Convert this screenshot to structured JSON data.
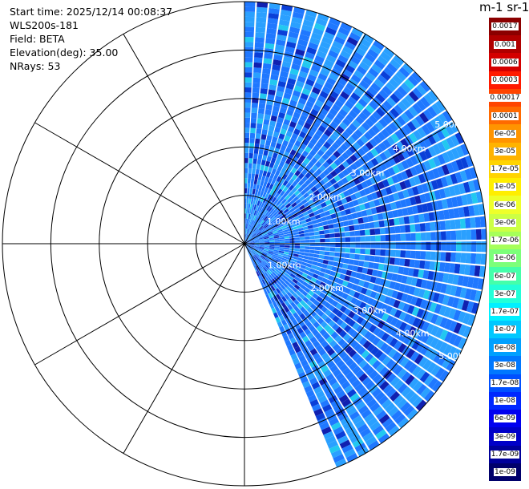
{
  "info": {
    "start_time": "Start time: 2025/12/14 00:08:37",
    "instrument": "WLS200s-181",
    "field": "Field: BETA",
    "elevation": "Elevation(deg): 35.00",
    "nrays": "NRays: 53"
  },
  "colorbar": {
    "title": "m-1 sr-1",
    "levels": [
      {
        "label": "0.0017",
        "color": "#8b0000"
      },
      {
        "label": "0.001",
        "color": "#b00000"
      },
      {
        "label": "0.0006",
        "color": "#d40000"
      },
      {
        "label": "0.0003",
        "color": "#ff1a00"
      },
      {
        "label": "0.00017",
        "color": "#ff4500"
      },
      {
        "label": "0.0001",
        "color": "#ff6a00"
      },
      {
        "label": "6e-05",
        "color": "#ff9400"
      },
      {
        "label": "3e-05",
        "color": "#ffb300"
      },
      {
        "label": "1.7e-05",
        "color": "#ffd400"
      },
      {
        "label": "1e-05",
        "color": "#ffee00"
      },
      {
        "label": "6e-06",
        "color": "#eeff2a"
      },
      {
        "label": "3e-06",
        "color": "#ccff44"
      },
      {
        "label": "1.7e-06",
        "color": "#a6ff5a"
      },
      {
        "label": "1e-06",
        "color": "#7cff7a"
      },
      {
        "label": "6e-07",
        "color": "#44ffaa"
      },
      {
        "label": "3e-07",
        "color": "#22ffd8"
      },
      {
        "label": "1.7e-07",
        "color": "#00f0ff"
      },
      {
        "label": "1e-07",
        "color": "#00c8ff"
      },
      {
        "label": "6e-08",
        "color": "#00a0ff"
      },
      {
        "label": "3e-08",
        "color": "#0078ff"
      },
      {
        "label": "1.7e-08",
        "color": "#0050ff"
      },
      {
        "label": "1e-08",
        "color": "#0028ff"
      },
      {
        "label": "6e-09",
        "color": "#0000f0"
      },
      {
        "label": "3e-09",
        "color": "#0000c8"
      },
      {
        "label": "1.7e-09",
        "color": "#00009a"
      },
      {
        "label": "1e-09",
        "color": "#00006b"
      }
    ]
  },
  "polar": {
    "ring_labels": [
      "1.00km",
      "2.00km",
      "3.00km",
      "4.00km",
      "5.00km"
    ],
    "max_range_km": 5,
    "spoke_count": 12,
    "ray_count": 53,
    "azimuth_start_deg": 0,
    "azimuth_end_deg": 158,
    "scan_colors": {
      "base": "#1f78ff",
      "light": "#2aa0ff",
      "cyan": "#22c8f0",
      "dark": "#0a3fd8",
      "navy": "#1020b0",
      "gap": "#ffffff"
    }
  }
}
